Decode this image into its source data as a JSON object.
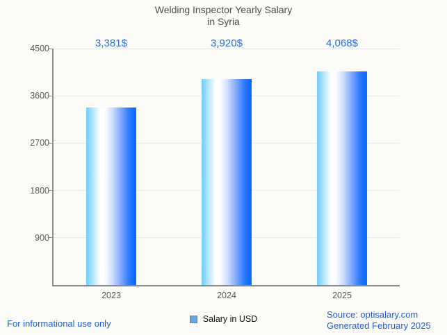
{
  "title": {
    "line1": "Welding Inspector Yearly Salary",
    "line2": "in Syria"
  },
  "chart_data": {
    "type": "bar",
    "title": "Welding Inspector Yearly Salary in Syria",
    "categories": [
      "2023",
      "2024",
      "2025"
    ],
    "values": [
      3381,
      3920,
      4068
    ],
    "value_labels": [
      "3,381$",
      "3,920$",
      "4,068$"
    ],
    "series_name": "Salary in USD",
    "xlabel": "",
    "ylabel": "",
    "ylim": [
      0,
      4500
    ],
    "yticks": [
      900,
      1800,
      2700,
      3600,
      4500
    ],
    "grid": true,
    "legend_position": "bottom",
    "bar_gradient": [
      "#6fcdfa",
      "#ffffff",
      "#0d6bfd"
    ],
    "value_label_color": "#2a6fdd",
    "axis_color": "#8c8c8c",
    "gridline_color": "#e9e9e6",
    "background_color": "#fbfbf7"
  },
  "legend": {
    "label": "Salary in USD",
    "swatch_color": "#69a2e5"
  },
  "footer": {
    "left": "For informational use only",
    "source": "Source: optisalary.com",
    "generated": "Generated February 2025",
    "text_color": "#1e5fd6"
  }
}
